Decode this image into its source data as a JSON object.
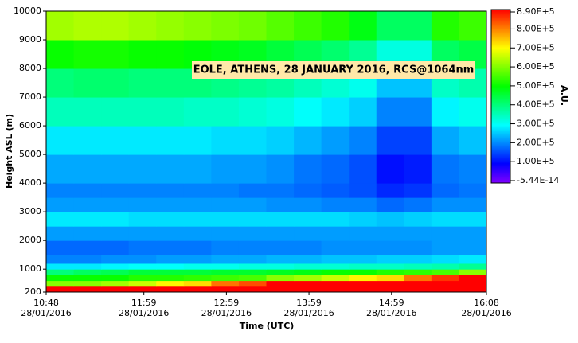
{
  "chart_data": {
    "type": "heatmap",
    "title": "EOLE, ATHENS, 28 JANUARY 2016, RCS@1064nm",
    "x_label": "Time (UTC)",
    "y_label": "Height ASL (m)",
    "colorbar_label": "A.U.",
    "xlim": [
      648,
      968
    ],
    "xticks": [
      {
        "value": 648,
        "label": "10:48",
        "date": "28/01/2016"
      },
      {
        "value": 719,
        "label": "11:59",
        "date": "28/01/2016"
      },
      {
        "value": 779,
        "label": "12:59",
        "date": "28/01/2016"
      },
      {
        "value": 839,
        "label": "13:59",
        "date": "28/01/2016"
      },
      {
        "value": 899,
        "label": "14:59",
        "date": "28/01/2016"
      },
      {
        "value": 968,
        "label": "16:08",
        "date": "28/01/2016"
      }
    ],
    "ylim": [
      200,
      10000
    ],
    "yticks": [
      200,
      1000,
      2000,
      3000,
      4000,
      5000,
      6000,
      7000,
      8000,
      9000,
      10000
    ],
    "clim": [
      -5.44e-14,
      890000
    ],
    "cticks": [
      {
        "value": 890000,
        "label": "8.90E+5"
      },
      {
        "value": 800000,
        "label": "8.00E+5"
      },
      {
        "value": 700000,
        "label": "7.00E+5"
      },
      {
        "value": 600000,
        "label": "6.00E+5"
      },
      {
        "value": 500000,
        "label": "5.00E+5"
      },
      {
        "value": 400000,
        "label": "4.00E+5"
      },
      {
        "value": 300000,
        "label": "3.00E+5"
      },
      {
        "value": 200000,
        "label": "2.00E+5"
      },
      {
        "value": 100000,
        "label": "1.00E+5"
      },
      {
        "value": -5.44e-14,
        "label": "-5.44E-14"
      }
    ],
    "colormap": [
      "#8000ff",
      "#0000ff",
      "#0080ff",
      "#00ffff",
      "#00ff80",
      "#00ff00",
      "#80ff00",
      "#ffff00",
      "#ff8000",
      "#ff0000"
    ],
    "x": [
      648,
      668,
      688,
      708,
      728,
      748,
      768,
      788,
      808,
      828,
      848,
      868,
      888,
      908,
      928,
      948,
      968
    ],
    "y": [
      200,
      400,
      600,
      800,
      1000,
      1200,
      1500,
      2000,
      2500,
      3000,
      3500,
      4000,
      5000,
      6000,
      7000,
      8000,
      9000,
      10000
    ],
    "z": [
      [
        890000,
        890000,
        890000,
        890000,
        890000,
        890000,
        890000,
        890000,
        890000,
        890000,
        890000,
        890000,
        890000,
        890000,
        890000,
        890000
      ],
      [
        600000,
        600000,
        620000,
        650000,
        700000,
        720000,
        800000,
        830000,
        890000,
        890000,
        890000,
        890000,
        890000,
        890000,
        890000,
        890000
      ],
      [
        500000,
        500000,
        500000,
        520000,
        520000,
        530000,
        540000,
        550000,
        600000,
        620000,
        650000,
        700000,
        720000,
        800000,
        850000,
        890000
      ],
      [
        400000,
        420000,
        430000,
        450000,
        450000,
        450000,
        460000,
        460000,
        470000,
        480000,
        500000,
        500000,
        520000,
        530000,
        550000,
        600000
      ],
      [
        280000,
        280000,
        290000,
        300000,
        300000,
        310000,
        310000,
        320000,
        320000,
        330000,
        330000,
        340000,
        340000,
        350000,
        360000,
        380000
      ],
      [
        200000,
        200000,
        210000,
        210000,
        220000,
        220000,
        230000,
        230000,
        240000,
        240000,
        250000,
        250000,
        260000,
        260000,
        270000,
        280000
      ],
      [
        180000,
        180000,
        180000,
        190000,
        190000,
        190000,
        200000,
        200000,
        200000,
        200000,
        210000,
        210000,
        210000,
        210000,
        220000,
        220000
      ],
      [
        220000,
        220000,
        220000,
        220000,
        220000,
        220000,
        220000,
        220000,
        220000,
        220000,
        220000,
        220000,
        220000,
        220000,
        220000,
        220000
      ],
      [
        280000,
        280000,
        280000,
        270000,
        270000,
        270000,
        270000,
        270000,
        270000,
        270000,
        270000,
        260000,
        250000,
        260000,
        270000,
        270000
      ],
      [
        220000,
        220000,
        220000,
        220000,
        220000,
        220000,
        220000,
        220000,
        210000,
        210000,
        200000,
        200000,
        180000,
        190000,
        210000,
        210000
      ],
      [
        200000,
        200000,
        200000,
        200000,
        200000,
        200000,
        200000,
        190000,
        190000,
        180000,
        170000,
        160000,
        130000,
        140000,
        180000,
        190000
      ],
      [
        230000,
        230000,
        230000,
        230000,
        230000,
        230000,
        220000,
        220000,
        210000,
        190000,
        180000,
        160000,
        110000,
        120000,
        190000,
        200000
      ],
      [
        280000,
        280000,
        280000,
        280000,
        280000,
        280000,
        270000,
        270000,
        260000,
        240000,
        220000,
        200000,
        150000,
        150000,
        230000,
        250000
      ],
      [
        350000,
        350000,
        350000,
        350000,
        350000,
        340000,
        340000,
        330000,
        320000,
        300000,
        280000,
        260000,
        200000,
        200000,
        290000,
        310000
      ],
      [
        400000,
        410000,
        410000,
        400000,
        400000,
        400000,
        390000,
        380000,
        370000,
        350000,
        330000,
        310000,
        250000,
        250000,
        340000,
        360000
      ],
      [
        500000,
        510000,
        510000,
        500000,
        500000,
        490000,
        480000,
        470000,
        450000,
        430000,
        410000,
        380000,
        320000,
        320000,
        420000,
        440000
      ],
      [
        620000,
        630000,
        630000,
        620000,
        610000,
        600000,
        590000,
        580000,
        560000,
        540000,
        520000,
        480000,
        420000,
        420000,
        520000,
        540000
      ]
    ]
  }
}
